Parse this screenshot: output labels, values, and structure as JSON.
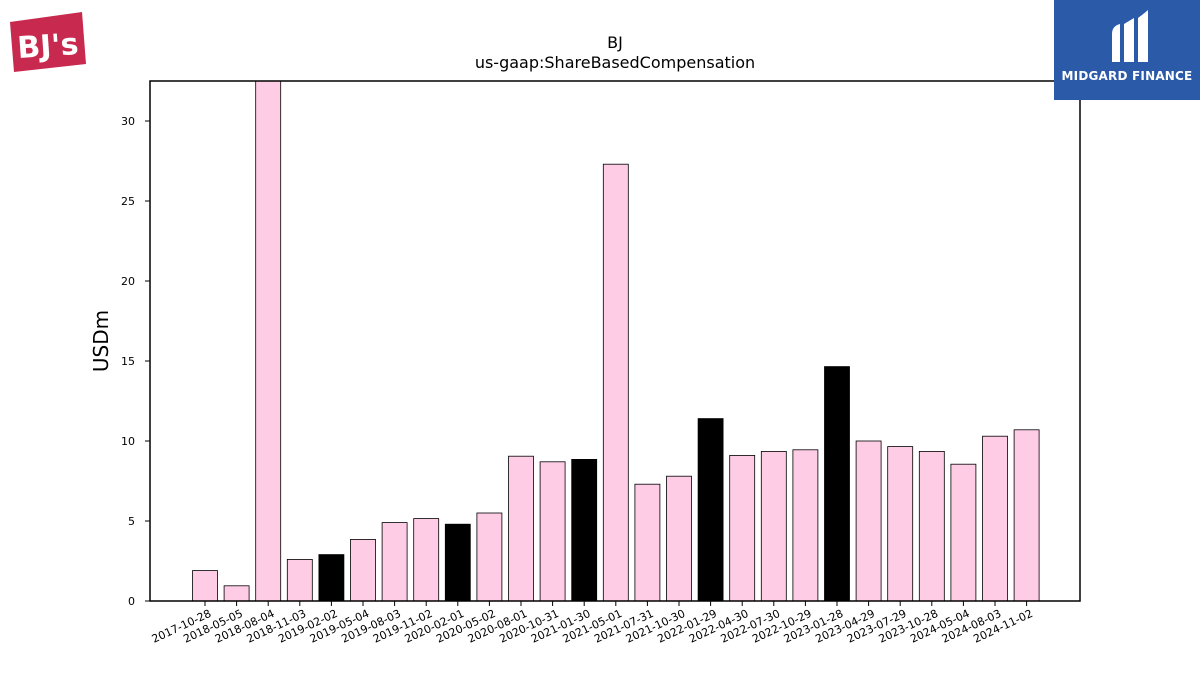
{
  "logos": {
    "left_text": "BJ's",
    "right_text": "MIDGARD FINANCE"
  },
  "colors": {
    "default_bar": "#ffcce6",
    "highlight_bar": "#000000",
    "logo_left": "#c8294f",
    "logo_right_bg": "#2b5ba8"
  },
  "chart_data": {
    "type": "bar",
    "title": "BJ",
    "subtitle": "us-gaap:ShareBasedCompensation",
    "xlabel": "",
    "ylabel": "USDm",
    "ylim": [
      0,
      32.5
    ],
    "yticks": [
      0,
      5,
      10,
      15,
      20,
      25,
      30
    ],
    "grid": false,
    "categories": [
      "2017-10-28",
      "2018-05-05",
      "2018-08-04",
      "2018-11-03",
      "2019-02-02",
      "2019-05-04",
      "2019-08-03",
      "2019-11-02",
      "2020-02-01",
      "2020-05-02",
      "2020-08-01",
      "2020-10-31",
      "2021-01-30",
      "2021-05-01",
      "2021-07-31",
      "2021-10-30",
      "2022-01-29",
      "2022-04-30",
      "2022-07-30",
      "2022-10-29",
      "2023-01-28",
      "2023-04-29",
      "2023-07-29",
      "2023-10-28",
      "2024-05-04",
      "2024-08-03",
      "2024-11-02"
    ],
    "values": [
      1.9,
      0.95,
      32.5,
      2.6,
      2.9,
      3.85,
      4.9,
      5.15,
      4.8,
      5.5,
      9.05,
      8.7,
      8.85,
      27.3,
      7.3,
      7.8,
      11.4,
      9.1,
      9.35,
      9.45,
      14.65,
      10.0,
      9.65,
      9.35,
      8.55,
      10.3,
      10.7
    ],
    "highlight": [
      false,
      false,
      false,
      false,
      true,
      false,
      false,
      false,
      true,
      false,
      false,
      false,
      true,
      false,
      false,
      false,
      true,
      false,
      false,
      false,
      true,
      false,
      false,
      false,
      false,
      false,
      false
    ]
  }
}
